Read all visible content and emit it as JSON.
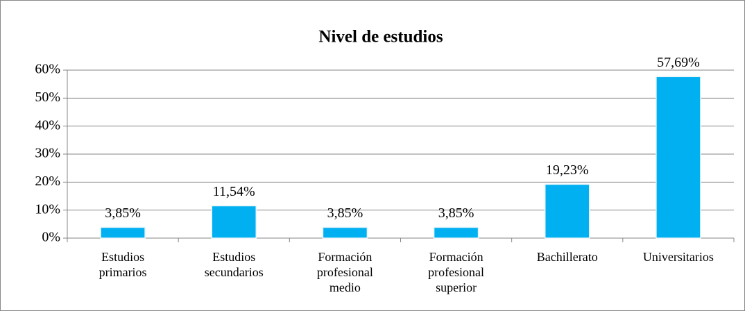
{
  "chart_data": {
    "type": "bar",
    "title": "Nivel de estudios",
    "categories": [
      "Estudios primarios",
      "Estudios secundarios",
      "Formación profesional medio",
      "Formación profesional superior",
      "Bachillerato",
      "Universitarios"
    ],
    "values": [
      3.85,
      11.54,
      3.85,
      3.85,
      19.23,
      57.69
    ],
    "value_labels": [
      "3,85%",
      "11,54%",
      "3,85%",
      "3,85%",
      "19,23%",
      "57,69%"
    ],
    "color": "#00b0f0",
    "ylim": [
      0,
      60
    ],
    "yticks": [
      {
        "value": 0,
        "label": "0%"
      },
      {
        "value": 10,
        "label": "10%"
      },
      {
        "value": 20,
        "label": "20%"
      },
      {
        "value": 30,
        "label": "30%"
      },
      {
        "value": 40,
        "label": "40%"
      },
      {
        "value": 50,
        "label": "50%"
      },
      {
        "value": 60,
        "label": "60%"
      }
    ],
    "grid": true
  }
}
